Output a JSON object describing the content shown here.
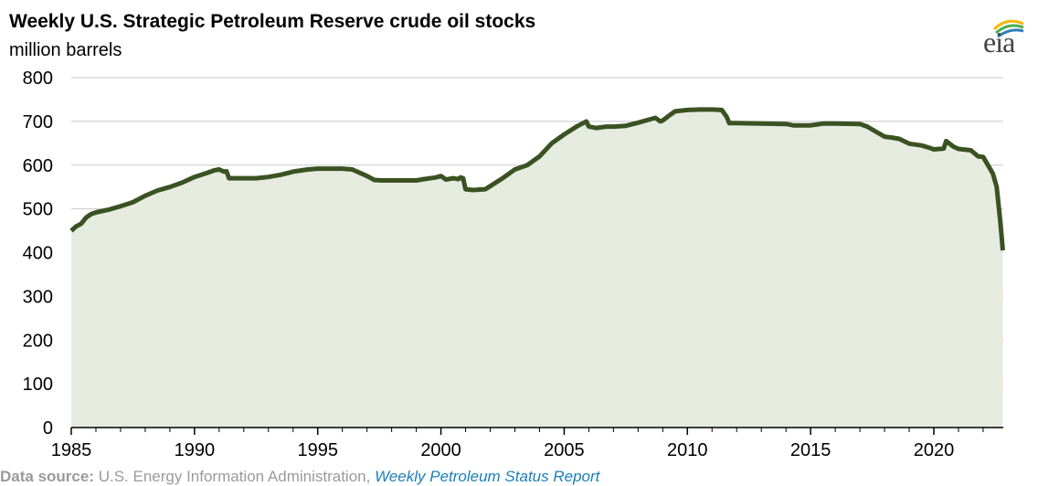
{
  "header": {
    "title": "Weekly U.S. Strategic Petroleum Reserve crude oil stocks",
    "subtitle": "million barrels",
    "logo_text": "eia"
  },
  "footer": {
    "source_label": "Data source:",
    "source_text": " U.S. Energy Information Administration, ",
    "source_link": "Weekly Petroleum Status Report"
  },
  "colors": {
    "line": "#3a5222",
    "fill": "#e6ebe0",
    "grid": "#c8c8c8",
    "axis": "#000000"
  },
  "chart_data": {
    "type": "area",
    "title": "Weekly U.S. Strategic Petroleum Reserve crude oil stocks",
    "ylabel": "million barrels",
    "xlabel": "",
    "xlim": [
      1985,
      2022.8
    ],
    "ylim": [
      0,
      800
    ],
    "y_ticks": [
      "0",
      "100",
      "200",
      "300",
      "400",
      "500",
      "600",
      "700",
      "800"
    ],
    "x_ticks": [
      "1985",
      "1990",
      "1995",
      "2000",
      "2005",
      "2010",
      "2015",
      "2020"
    ],
    "grid": true,
    "series": [
      {
        "values": [
          [
            1985.0,
            450
          ],
          [
            1985.2,
            460
          ],
          [
            1985.4,
            466
          ],
          [
            1985.6,
            480
          ],
          [
            1985.8,
            488
          ],
          [
            1986.0,
            492
          ],
          [
            1986.5,
            498
          ],
          [
            1987.0,
            506
          ],
          [
            1987.5,
            515
          ],
          [
            1988.0,
            530
          ],
          [
            1988.5,
            542
          ],
          [
            1989.0,
            550
          ],
          [
            1989.5,
            560
          ],
          [
            1990.0,
            573
          ],
          [
            1990.5,
            582
          ],
          [
            1990.8,
            588
          ],
          [
            1991.0,
            590
          ],
          [
            1991.2,
            585
          ],
          [
            1991.3,
            586
          ],
          [
            1991.4,
            570
          ],
          [
            1992.0,
            570
          ],
          [
            1992.5,
            570
          ],
          [
            1993.0,
            573
          ],
          [
            1993.5,
            578
          ],
          [
            1994.0,
            585
          ],
          [
            1994.6,
            590
          ],
          [
            1995.0,
            592
          ],
          [
            1995.5,
            592
          ],
          [
            1996.0,
            592
          ],
          [
            1996.4,
            590
          ],
          [
            1996.8,
            580
          ],
          [
            1997.0,
            575
          ],
          [
            1997.3,
            566
          ],
          [
            1997.6,
            565
          ],
          [
            1998.0,
            565
          ],
          [
            1998.5,
            565
          ],
          [
            1999.0,
            565
          ],
          [
            1999.3,
            568
          ],
          [
            1999.8,
            572
          ],
          [
            2000.0,
            575
          ],
          [
            2000.2,
            567
          ],
          [
            2000.5,
            570
          ],
          [
            2000.7,
            568
          ],
          [
            2000.8,
            572
          ],
          [
            2000.9,
            570
          ],
          [
            2001.0,
            545
          ],
          [
            2001.3,
            543
          ],
          [
            2001.8,
            545
          ],
          [
            2002.0,
            552
          ],
          [
            2002.5,
            570
          ],
          [
            2003.0,
            590
          ],
          [
            2003.5,
            600
          ],
          [
            2004.0,
            620
          ],
          [
            2004.5,
            650
          ],
          [
            2005.0,
            670
          ],
          [
            2005.5,
            688
          ],
          [
            2005.9,
            700
          ],
          [
            2006.0,
            688
          ],
          [
            2006.3,
            685
          ],
          [
            2006.7,
            688
          ],
          [
            2007.0,
            688
          ],
          [
            2007.5,
            690
          ],
          [
            2008.0,
            697
          ],
          [
            2008.5,
            705
          ],
          [
            2008.7,
            708
          ],
          [
            2008.9,
            700
          ],
          [
            2009.0,
            702
          ],
          [
            2009.3,
            715
          ],
          [
            2009.5,
            723
          ],
          [
            2010.0,
            726
          ],
          [
            2010.5,
            727
          ],
          [
            2011.0,
            727
          ],
          [
            2011.4,
            726
          ],
          [
            2011.6,
            710
          ],
          [
            2011.7,
            696
          ],
          [
            2012.0,
            696
          ],
          [
            2013.0,
            695
          ],
          [
            2014.0,
            694
          ],
          [
            2014.3,
            691
          ],
          [
            2015.0,
            691
          ],
          [
            2015.5,
            695
          ],
          [
            2016.0,
            695
          ],
          [
            2017.0,
            694
          ],
          [
            2017.3,
            688
          ],
          [
            2017.6,
            678
          ],
          [
            2018.0,
            665
          ],
          [
            2018.3,
            663
          ],
          [
            2018.6,
            660
          ],
          [
            2019.0,
            649
          ],
          [
            2019.5,
            645
          ],
          [
            2019.8,
            640
          ],
          [
            2020.0,
            636
          ],
          [
            2020.4,
            638
          ],
          [
            2020.5,
            655
          ],
          [
            2020.8,
            642
          ],
          [
            2021.0,
            637
          ],
          [
            2021.5,
            634
          ],
          [
            2021.8,
            620
          ],
          [
            2022.0,
            619
          ],
          [
            2022.2,
            600
          ],
          [
            2022.4,
            580
          ],
          [
            2022.55,
            550
          ],
          [
            2022.7,
            470
          ],
          [
            2022.8,
            405
          ]
        ]
      }
    ]
  }
}
